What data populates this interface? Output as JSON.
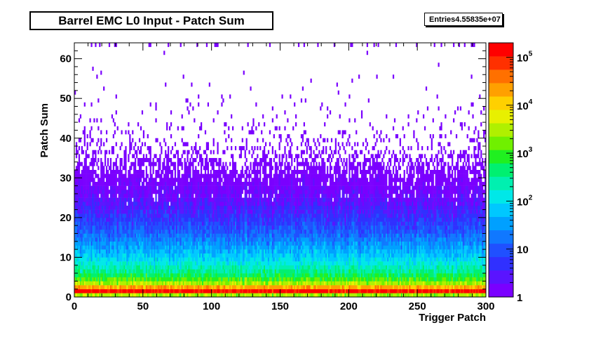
{
  "title": "Barrel EMC L0 Input - Patch Sum",
  "stats": {
    "label": "Entries",
    "value": "4.55835e+07"
  },
  "colors": {
    "palette": [
      "#7a00ff",
      "#5a14ff",
      "#3030ff",
      "#2050ff",
      "#1078ff",
      "#00a0ff",
      "#00c8ff",
      "#00e8e8",
      "#00f0b0",
      "#00f070",
      "#20f020",
      "#70f000",
      "#b0f000",
      "#e8f000",
      "#ffd000",
      "#ffa000",
      "#ff7000",
      "#ff3000",
      "#ff0000"
    ]
  },
  "chart_data": {
    "type": "heatmap",
    "title": "Barrel EMC L0 Input - Patch Sum",
    "xlabel": "Trigger Patch",
    "ylabel": "Patch Sum",
    "xlim": [
      0,
      300
    ],
    "ylim": [
      0,
      64
    ],
    "x_ticks": [
      0,
      50,
      100,
      150,
      200,
      250,
      300
    ],
    "y_ticks": [
      0,
      10,
      20,
      30,
      40,
      50,
      60
    ],
    "z_scale": "log",
    "zlim": [
      1,
      200000
    ],
    "z_ticks": [
      {
        "value": 1,
        "base": "1",
        "exp": ""
      },
      {
        "value": 10,
        "base": "10",
        "exp": ""
      },
      {
        "value": 100,
        "base": "10",
        "exp": "2"
      },
      {
        "value": 1000,
        "base": "10",
        "exp": "3"
      },
      {
        "value": 10000,
        "base": "10",
        "exp": "4"
      },
      {
        "value": 100000,
        "base": "10",
        "exp": "5"
      }
    ],
    "profile": [
      {
        "y": 0,
        "z": 3000
      },
      {
        "y": 1,
        "z": 150000
      },
      {
        "y": 2,
        "z": 20000
      },
      {
        "y": 3,
        "z": 3000
      },
      {
        "y": 4,
        "z": 1200
      },
      {
        "y": 5,
        "z": 600
      },
      {
        "y": 6,
        "z": 350
      },
      {
        "y": 8,
        "z": 150
      },
      {
        "y": 10,
        "z": 70
      },
      {
        "y": 13,
        "z": 30
      },
      {
        "y": 16,
        "z": 12
      },
      {
        "y": 20,
        "z": 5
      },
      {
        "y": 25,
        "z": 2
      },
      {
        "y": 30,
        "z": 1
      }
    ],
    "entries": 45583500
  }
}
